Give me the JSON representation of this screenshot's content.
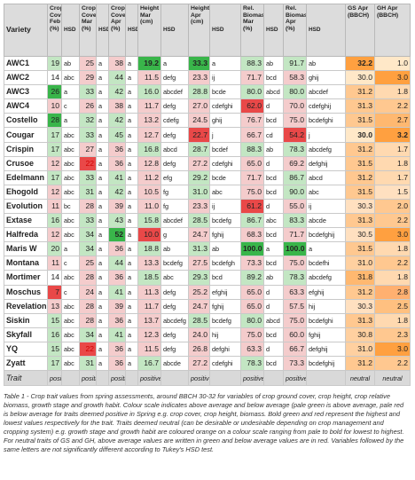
{
  "table": {
    "columns": [
      {
        "label": "Variety",
        "type": "variety"
      },
      {
        "label": "Crop Cover Feb (%)",
        "type": "val"
      },
      {
        "label": "HSD",
        "type": "hsd"
      },
      {
        "label": "Crop Cover Mar (%)",
        "type": "val"
      },
      {
        "label": "HSD",
        "type": "hsd"
      },
      {
        "label": "Crop Cover Apr (%)",
        "type": "val"
      },
      {
        "label": "HSD",
        "type": "hsd"
      },
      {
        "label": "Height Mar (cm)",
        "type": "val"
      },
      {
        "label": "HSD",
        "type": "hsd"
      },
      {
        "label": "Height Apr (cm)",
        "type": "val"
      },
      {
        "label": "HSD",
        "type": "hsd"
      },
      {
        "label": "Rel. Biomass Mar (%)",
        "type": "val"
      },
      {
        "label": "HSD",
        "type": "hsd"
      },
      {
        "label": "Rel. Biomass Apr (%)",
        "type": "val"
      },
      {
        "label": "HSD",
        "type": "hsd"
      },
      {
        "label": "GS Apr (BBCH)",
        "type": "val"
      },
      {
        "label": "GH Apr (BBCH)",
        "type": "val"
      }
    ],
    "rows": [
      {
        "cells": [
          "AWC1",
          "19",
          "ab",
          "25",
          "a",
          "38",
          "a",
          "19.2",
          "a",
          "33.3",
          "a",
          "88.3",
          "ab",
          "91.7",
          "ab",
          "32.2",
          "1.0"
        ],
        "colors": [
          "",
          "#c3e6c3",
          "",
          "#f4cccc",
          "",
          "#f4cccc",
          "",
          "#39b54a",
          "",
          "#39b54a",
          "",
          "#c3e6c3",
          "",
          "#c3e6c3",
          "",
          "#ffa040",
          "#ffe8c8"
        ],
        "bold": [
          0,
          7,
          9,
          15
        ],
        "red": []
      },
      {
        "cells": [
          "AWC2",
          "14",
          "abc",
          "29",
          "a",
          "44",
          "a",
          "11.5",
          "defg",
          "23.3",
          "ij",
          "71.7",
          "bcd",
          "58.3",
          "ghij",
          "30.0",
          "3.0"
        ],
        "colors": [
          "",
          "#ffffff",
          "",
          "#f4cccc",
          "",
          "#c3e6c3",
          "",
          "#f4cccc",
          "",
          "#f4cccc",
          "",
          "#f4cccc",
          "",
          "#f4cccc",
          "",
          "#ffe8c8",
          "#ffa040"
        ],
        "bold": [
          0
        ],
        "red": []
      },
      {
        "cells": [
          "AWC3",
          "26",
          "a",
          "33",
          "a",
          "42",
          "a",
          "16.0",
          "abcdef",
          "28.8",
          "bcde",
          "80.0",
          "abcd",
          "80.0",
          "abcdef",
          "31.2",
          "1.8"
        ],
        "colors": [
          "",
          "#39b54a",
          "",
          "#c3e6c3",
          "",
          "#c3e6c3",
          "",
          "#c3e6c3",
          "",
          "#c3e6c3",
          "",
          "#c3e6c3",
          "",
          "#c3e6c3",
          "",
          "#ffc890",
          "#ffd9b0"
        ],
        "bold": [
          0
        ],
        "red": []
      },
      {
        "cells": [
          "AWC4",
          "10",
          "c",
          "26",
          "a",
          "38",
          "a",
          "11.7",
          "defg",
          "27.0",
          "cdefghi",
          "62.0",
          "d",
          "70.0",
          "cdefghij",
          "31.3",
          "2.2"
        ],
        "colors": [
          "",
          "#f4cccc",
          "",
          "#f4cccc",
          "",
          "#f4cccc",
          "",
          "#f4cccc",
          "",
          "#f4cccc",
          "",
          "#e94848",
          "",
          "#f4cccc",
          "",
          "#ffc890",
          "#ffc890"
        ],
        "bold": [
          0
        ],
        "red": []
      },
      {
        "cells": [
          "Costello",
          "28",
          "a",
          "32",
          "a",
          "42",
          "a",
          "13.2",
          "cdefg",
          "24.5",
          "ghij",
          "76.7",
          "bcd",
          "75.0",
          "bcdefghi",
          "31.5",
          "2.7"
        ],
        "colors": [
          "",
          "#39b54a",
          "",
          "#c3e6c3",
          "",
          "#c3e6c3",
          "",
          "#f4cccc",
          "",
          "#f4cccc",
          "",
          "#f4cccc",
          "",
          "#f4cccc",
          "",
          "#ffc890",
          "#ffb870"
        ],
        "bold": [
          0
        ],
        "red": []
      },
      {
        "cells": [
          "Cougar",
          "17",
          "abc",
          "33",
          "a",
          "45",
          "a",
          "12.7",
          "defg",
          "22.7",
          "j",
          "66.7",
          "cd",
          "54.2",
          "j",
          "30.0",
          "3.2"
        ],
        "colors": [
          "",
          "#c3e6c3",
          "",
          "#c3e6c3",
          "",
          "#c3e6c3",
          "",
          "#f4cccc",
          "",
          "#e94848",
          "",
          "#f4cccc",
          "",
          "#e94848",
          "",
          "#ffe8c8",
          "#ffa040"
        ],
        "bold": [
          0,
          15,
          16
        ],
        "red": []
      },
      {
        "cells": [
          "Crispin",
          "17",
          "abc",
          "27",
          "a",
          "36",
          "a",
          "16.8",
          "abcd",
          "28.7",
          "bcdef",
          "88.3",
          "ab",
          "78.3",
          "abcdefg",
          "31.2",
          "1.7"
        ],
        "colors": [
          "",
          "#c3e6c3",
          "",
          "#f4cccc",
          "",
          "#f4cccc",
          "",
          "#c3e6c3",
          "",
          "#c3e6c3",
          "",
          "#c3e6c3",
          "",
          "#c3e6c3",
          "",
          "#ffc890",
          "#ffd9b0"
        ],
        "bold": [
          0
        ],
        "red": []
      },
      {
        "cells": [
          "Crusoe",
          "12",
          "abc",
          "22",
          "a",
          "36",
          "a",
          "12.8",
          "defg",
          "27.2",
          "cdefghi",
          "65.0",
          "d",
          "69.2",
          "defghij",
          "31.5",
          "1.8"
        ],
        "colors": [
          "",
          "#f4cccc",
          "",
          "#e94848",
          "",
          "#f4cccc",
          "",
          "#f4cccc",
          "",
          "#f4cccc",
          "",
          "#f4cccc",
          "",
          "#f4cccc",
          "",
          "#ffc890",
          "#ffd9b0"
        ],
        "bold": [
          0
        ],
        "red": [
          3
        ]
      },
      {
        "cells": [
          "Edelmann",
          "17",
          "abc",
          "33",
          "a",
          "41",
          "a",
          "11.2",
          "efg",
          "29.2",
          "bcde",
          "71.7",
          "bcd",
          "86.7",
          "abcd",
          "31.2",
          "1.7"
        ],
        "colors": [
          "",
          "#c3e6c3",
          "",
          "#c3e6c3",
          "",
          "#c3e6c3",
          "",
          "#f4cccc",
          "",
          "#c3e6c3",
          "",
          "#f4cccc",
          "",
          "#c3e6c3",
          "",
          "#ffc890",
          "#ffd9b0"
        ],
        "bold": [
          0
        ],
        "red": []
      },
      {
        "cells": [
          "Ehogold",
          "12",
          "abc",
          "31",
          "a",
          "42",
          "a",
          "10.5",
          "fg",
          "31.0",
          "abc",
          "75.0",
          "bcd",
          "90.0",
          "abc",
          "31.5",
          "1.5"
        ],
        "colors": [
          "",
          "#f4cccc",
          "",
          "#c3e6c3",
          "",
          "#c3e6c3",
          "",
          "#f4cccc",
          "",
          "#c3e6c3",
          "",
          "#f4cccc",
          "",
          "#c3e6c3",
          "",
          "#ffc890",
          "#ffe0c0"
        ],
        "bold": [
          0
        ],
        "red": []
      },
      {
        "cells": [
          "Evolution",
          "11",
          "bc",
          "28",
          "a",
          "39",
          "a",
          "11.0",
          "fg",
          "23.3",
          "ij",
          "61.2",
          "d",
          "55.0",
          "ij",
          "30.3",
          "2.0"
        ],
        "colors": [
          "",
          "#f4cccc",
          "",
          "#f4cccc",
          "",
          "#f4cccc",
          "",
          "#f4cccc",
          "",
          "#f4cccc",
          "",
          "#e94848",
          "",
          "#f4cccc",
          "",
          "#ffe0c0",
          "#ffc890"
        ],
        "bold": [
          0
        ],
        "red": []
      },
      {
        "cells": [
          "Extase",
          "16",
          "abc",
          "33",
          "a",
          "43",
          "a",
          "15.8",
          "abcdef",
          "28.5",
          "bcdefg",
          "86.7",
          "abc",
          "83.3",
          "abcde",
          "31.3",
          "2.2"
        ],
        "colors": [
          "",
          "#c3e6c3",
          "",
          "#c3e6c3",
          "",
          "#c3e6c3",
          "",
          "#c3e6c3",
          "",
          "#c3e6c3",
          "",
          "#c3e6c3",
          "",
          "#c3e6c3",
          "",
          "#ffc890",
          "#ffc890"
        ],
        "bold": [
          0
        ],
        "red": []
      },
      {
        "cells": [
          "Halfreda",
          "12",
          "abc",
          "34",
          "a",
          "52",
          "a",
          "10.0",
          "g",
          "24.7",
          "fghij",
          "68.3",
          "bcd",
          "71.7",
          "bcdefghij",
          "30.5",
          "3.0"
        ],
        "colors": [
          "",
          "#f4cccc",
          "",
          "#c3e6c3",
          "",
          "#39b54a",
          "",
          "#e94848",
          "",
          "#f4cccc",
          "",
          "#f4cccc",
          "",
          "#f4cccc",
          "",
          "#ffe0c0",
          "#ffa040"
        ],
        "bold": [
          0,
          5
        ],
        "red": []
      },
      {
        "cells": [
          "Maris W",
          "20",
          "a",
          "34",
          "a",
          "36",
          "a",
          "18.8",
          "ab",
          "31.3",
          "ab",
          "100.0",
          "a",
          "100.0",
          "a",
          "31.5",
          "1.8"
        ],
        "colors": [
          "",
          "#c3e6c3",
          "",
          "#c3e6c3",
          "",
          "#f4cccc",
          "",
          "#c3e6c3",
          "",
          "#c3e6c3",
          "",
          "#39b54a",
          "",
          "#39b54a",
          "",
          "#ffc890",
          "#ffd9b0"
        ],
        "bold": [
          0,
          11,
          13
        ],
        "red": []
      },
      {
        "cells": [
          "Montana",
          "11",
          "c",
          "25",
          "a",
          "44",
          "a",
          "13.3",
          "bcdefg",
          "27.5",
          "bcdefgh",
          "73.3",
          "bcd",
          "75.0",
          "bcdefhi",
          "31.0",
          "2.2"
        ],
        "colors": [
          "",
          "#f4cccc",
          "",
          "#f4cccc",
          "",
          "#c3e6c3",
          "",
          "#f4cccc",
          "",
          "#f4cccc",
          "",
          "#f4cccc",
          "",
          "#f4cccc",
          "",
          "#ffd0a0",
          "#ffc890"
        ],
        "bold": [
          0
        ],
        "red": []
      },
      {
        "cells": [
          "Mortimer",
          "14",
          "abc",
          "28",
          "a",
          "36",
          "a",
          "18.5",
          "abc",
          "29.3",
          "bcd",
          "89.2",
          "ab",
          "78.3",
          "abcdefg",
          "31.8",
          "1.8"
        ],
        "colors": [
          "",
          "#ffffff",
          "",
          "#f4cccc",
          "",
          "#f4cccc",
          "",
          "#c3e6c3",
          "",
          "#c3e6c3",
          "",
          "#c3e6c3",
          "",
          "#c3e6c3",
          "",
          "#ffb870",
          "#ffd9b0"
        ],
        "bold": [
          0
        ],
        "red": []
      },
      {
        "cells": [
          "Moschus",
          "7",
          "c",
          "24",
          "a",
          "41",
          "a",
          "11.3",
          "defg",
          "25.2",
          "efghij",
          "65.0",
          "d",
          "63.3",
          "efghij",
          "31.2",
          "2.8"
        ],
        "colors": [
          "",
          "#e94848",
          "",
          "#f4cccc",
          "",
          "#c3e6c3",
          "",
          "#f4cccc",
          "",
          "#f4cccc",
          "",
          "#f4cccc",
          "",
          "#f4cccc",
          "",
          "#ffc890",
          "#ffb070"
        ],
        "bold": [
          0
        ],
        "red": []
      },
      {
        "cells": [
          "Revelation",
          "13",
          "abc",
          "28",
          "a",
          "39",
          "a",
          "11.7",
          "defg",
          "24.7",
          "fghij",
          "65.0",
          "d",
          "57.5",
          "hij",
          "30.3",
          "2.5"
        ],
        "colors": [
          "",
          "#f4cccc",
          "",
          "#f4cccc",
          "",
          "#f4cccc",
          "",
          "#f4cccc",
          "",
          "#f4cccc",
          "",
          "#f4cccc",
          "",
          "#f4cccc",
          "",
          "#ffe0c0",
          "#ffc080"
        ],
        "bold": [
          0
        ],
        "red": []
      },
      {
        "cells": [
          "Siskin",
          "15",
          "abc",
          "28",
          "a",
          "36",
          "a",
          "13.7",
          "abcdefg",
          "28.5",
          "bcdefg",
          "80.0",
          "abcd",
          "75.0",
          "bcdefghi",
          "31.3",
          "1.8"
        ],
        "colors": [
          "",
          "#c3e6c3",
          "",
          "#f4cccc",
          "",
          "#f4cccc",
          "",
          "#f4cccc",
          "",
          "#c3e6c3",
          "",
          "#c3e6c3",
          "",
          "#f4cccc",
          "",
          "#ffc890",
          "#ffd9b0"
        ],
        "bold": [
          0
        ],
        "red": []
      },
      {
        "cells": [
          "Skyfall",
          "16",
          "abc",
          "34",
          "a",
          "41",
          "a",
          "12.3",
          "defg",
          "24.0",
          "hij",
          "75.0",
          "bcd",
          "60.0",
          "fghij",
          "30.8",
          "2.3"
        ],
        "colors": [
          "",
          "#c3e6c3",
          "",
          "#c3e6c3",
          "",
          "#c3e6c3",
          "",
          "#f4cccc",
          "",
          "#f4cccc",
          "",
          "#f4cccc",
          "",
          "#f4cccc",
          "",
          "#ffd0a0",
          "#ffc890"
        ],
        "bold": [
          0
        ],
        "red": []
      },
      {
        "cells": [
          "YQ",
          "15",
          "abc",
          "22",
          "a",
          "36",
          "a",
          "11.5",
          "defg",
          "26.8",
          "defghi",
          "63.3",
          "d",
          "66.7",
          "defghij",
          "31.0",
          "3.0"
        ],
        "colors": [
          "",
          "#c3e6c3",
          "",
          "#e94848",
          "",
          "#f4cccc",
          "",
          "#f4cccc",
          "",
          "#f4cccc",
          "",
          "#f4cccc",
          "",
          "#f4cccc",
          "",
          "#ffd0a0",
          "#ffa040"
        ],
        "bold": [
          0
        ],
        "red": [
          3
        ]
      },
      {
        "cells": [
          "Zyatt",
          "17",
          "abc",
          "31",
          "a",
          "36",
          "a",
          "16.7",
          "abcde",
          "27.2",
          "cdefghi",
          "78.3",
          "bcd",
          "73.3",
          "bcdefghij",
          "31.2",
          "2.2"
        ],
        "colors": [
          "",
          "#c3e6c3",
          "",
          "#c3e6c3",
          "",
          "#f4cccc",
          "",
          "#c3e6c3",
          "",
          "#f4cccc",
          "",
          "#c3e6c3",
          "",
          "#f4cccc",
          "",
          "#ffc890",
          "#ffc890"
        ],
        "bold": [
          0
        ],
        "red": []
      }
    ],
    "trait_row": [
      "Trait",
      "positive",
      "",
      "positive",
      "",
      "positive",
      "",
      "positive",
      "",
      "positive",
      "",
      "positive",
      "",
      "positive",
      "",
      "neutral",
      "neutral"
    ]
  },
  "caption": "Table 1 - Crop trait values from spring assessments, around BBCH 30-32 for variables of crop ground cover, crop height, crop relative biomass, growth stage and growth habit. Colour scale indicates above average and below average (pale green is above average, pale red is below average for traits deemed positive in Spring e.g. crop cover, crop height, biomass. Bold green and red represent the highest and lowest values respectively for the trait. Traits deemed neutral (can be desirable or undesirable depending on crop management and cropping system) e.g. growth stage and growth habit are coloured orange on a colour scale ranging from pale to bold for lowest to highest. For neutral traits of GS and GH, above average values are written in green and below average values are in red. Variables followed by the same letters are not significantly different according to Tukey's HSD test."
}
